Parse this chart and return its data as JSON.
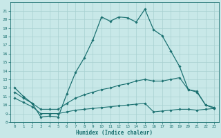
{
  "xlabel": "Humidex (Indice chaleur)",
  "bg_color": "#c8e8e8",
  "line_color": "#1a7070",
  "grid_color": "#a8d0d0",
  "xlim": [
    -0.5,
    23.5
  ],
  "ylim": [
    8,
    22
  ],
  "xticks": [
    0,
    1,
    2,
    3,
    4,
    5,
    6,
    7,
    8,
    9,
    10,
    11,
    12,
    13,
    14,
    15,
    16,
    17,
    18,
    19,
    20,
    21,
    22,
    23
  ],
  "yticks": [
    8,
    9,
    10,
    11,
    12,
    13,
    14,
    15,
    16,
    17,
    18,
    19,
    20,
    21
  ],
  "line1_x": [
    0,
    1,
    2,
    3,
    4,
    5,
    6,
    7,
    8,
    9,
    10,
    11,
    12,
    13,
    14,
    15,
    16,
    17,
    18,
    19,
    20,
    21,
    22,
    23
  ],
  "line1_y": [
    12.0,
    11.0,
    10.2,
    8.6,
    8.7,
    8.6,
    11.3,
    13.8,
    15.5,
    17.6,
    20.3,
    19.8,
    20.3,
    20.2,
    19.7,
    21.2,
    18.8,
    18.1,
    16.3,
    14.5,
    11.8,
    11.6,
    10.0,
    9.7
  ],
  "line2_x": [
    0,
    1,
    2,
    3,
    4,
    5,
    6,
    7,
    8,
    9,
    10,
    11,
    12,
    13,
    14,
    15,
    16,
    17,
    18,
    19,
    20,
    21,
    22,
    23
  ],
  "line2_y": [
    11.5,
    10.8,
    10.2,
    9.5,
    9.5,
    9.5,
    10.2,
    10.8,
    11.2,
    11.5,
    11.8,
    12.0,
    12.3,
    12.5,
    12.8,
    13.0,
    12.8,
    12.8,
    13.0,
    13.2,
    11.8,
    11.5,
    10.0,
    9.6
  ],
  "line3_x": [
    0,
    1,
    2,
    3,
    4,
    5,
    6,
    7,
    8,
    9,
    10,
    11,
    12,
    13,
    14,
    15,
    16,
    17,
    18,
    19,
    20,
    21,
    22,
    23
  ],
  "line3_y": [
    10.8,
    10.3,
    9.8,
    9.0,
    9.0,
    9.0,
    9.2,
    9.4,
    9.5,
    9.6,
    9.7,
    9.8,
    9.9,
    10.0,
    10.1,
    10.2,
    9.2,
    9.3,
    9.4,
    9.5,
    9.5,
    9.4,
    9.5,
    9.6
  ]
}
